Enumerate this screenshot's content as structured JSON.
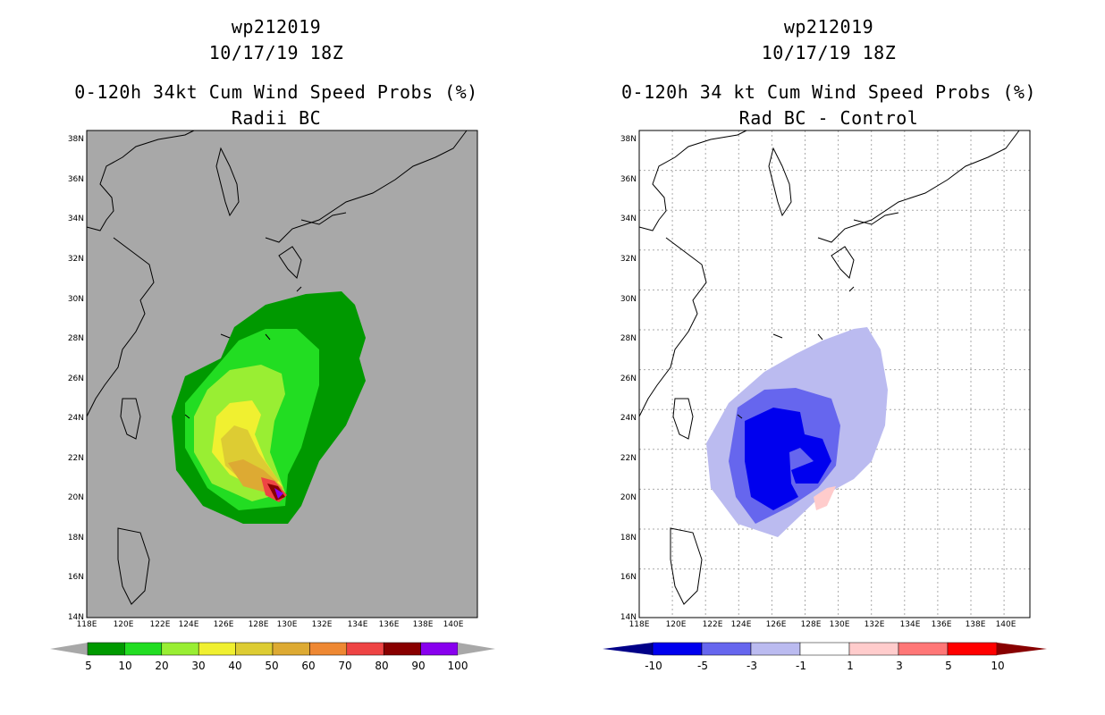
{
  "left": {
    "title1": "wp212019",
    "title2": "10/17/19 18Z",
    "title3": "0-120h 34kt Cum Wind Speed Probs (%)",
    "title4": "Radii BC",
    "colorbar_labels": [
      "5",
      "10",
      "20",
      "30",
      "40",
      "50",
      "60",
      "70",
      "80",
      "90",
      "100"
    ],
    "colorbar_colors": [
      "#009900",
      "#22dd22",
      "#99ee33",
      "#f0f030",
      "#ddcc33",
      "#ddaa33",
      "#ee8833",
      "#ee4444",
      "#880000",
      "#8800ee"
    ]
  },
  "right": {
    "title1": "wp212019",
    "title2": "10/17/19 18Z",
    "title3": "0-120h 34 kt Cum Wind Speed Probs (%)",
    "title4": "Rad BC - Control",
    "colorbar_labels": [
      "-10",
      "-5",
      "-3",
      "-1",
      "1",
      "3",
      "5",
      "10"
    ],
    "colorbar_colors": [
      "#0000ee",
      "#6666ee",
      "#bbbbf0",
      "#ffffff",
      "#ffcccc",
      "#ff7777",
      "#ff0000"
    ],
    "end_low": "#000088",
    "end_high": "#880000"
  },
  "axes": {
    "lat_labels": [
      "14N",
      "16N",
      "18N",
      "20N",
      "22N",
      "24N",
      "26N",
      "28N",
      "30N",
      "32N",
      "34N",
      "36N",
      "38N"
    ],
    "lon_labels": [
      "118E",
      "120E",
      "122E",
      "124E",
      "126E",
      "128E",
      "130E",
      "132E",
      "134E",
      "136E",
      "138E",
      "140E"
    ]
  },
  "colors": {
    "map_bg_left": "#a8a8a8",
    "map_bg_right": "#ffffff",
    "coast": "#000000"
  }
}
